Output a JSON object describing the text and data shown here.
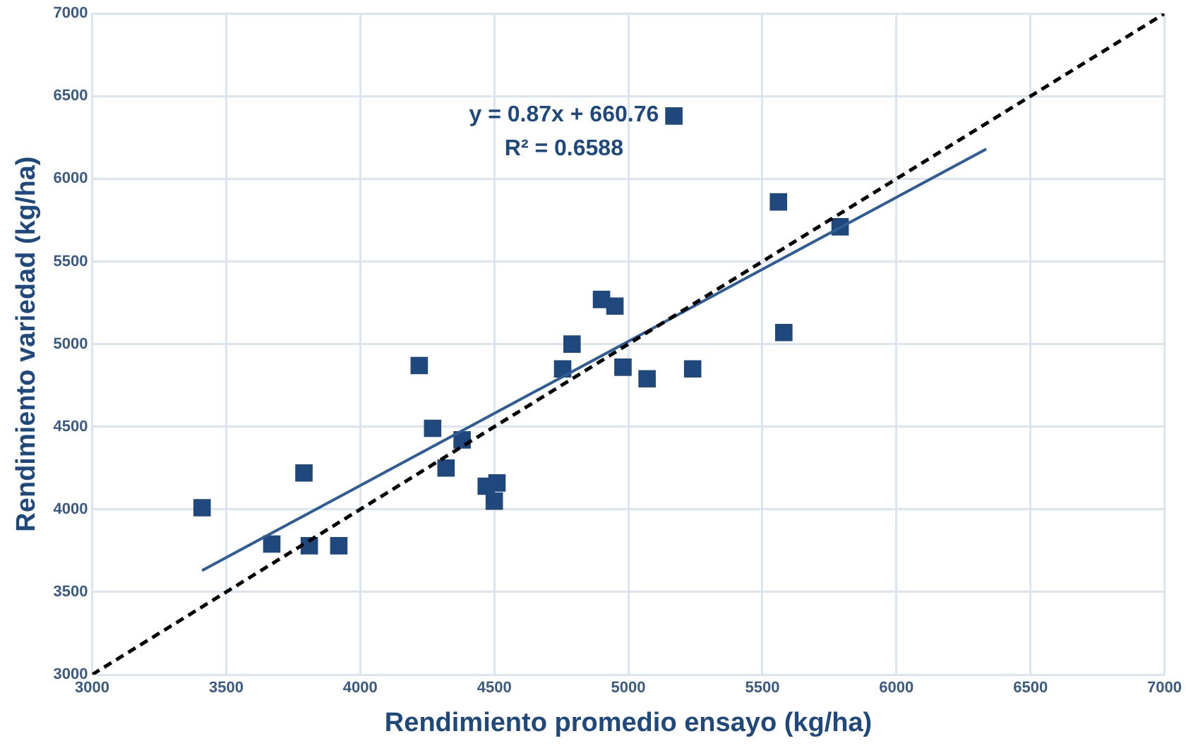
{
  "chart_data": {
    "type": "scatter",
    "xlabel": "Rendimiento promedio ensayo (kg/ha)",
    "ylabel": "Rendimiento variedad (kg/ha)",
    "xlim": [
      3000,
      7000
    ],
    "xticks": [
      3000,
      3500,
      4000,
      4500,
      5000,
      5500,
      6000,
      6500,
      7000
    ],
    "ylim": [
      3000,
      7000
    ],
    "yticks": [
      3000,
      3500,
      4000,
      4500,
      5000,
      5500,
      6000,
      6500,
      7000
    ],
    "grid": true,
    "legend": false,
    "marker": "square",
    "annotations": [
      "y = 0.87x + 660.76",
      "R² = 0.6588"
    ],
    "series": [
      {
        "type": "line",
        "color": "#000000",
        "line_style": "dashed",
        "marker": "none",
        "x": [
          3000,
          7000
        ],
        "values": [
          3000,
          7000
        ]
      },
      {
        "type": "line",
        "color": "#2e5c94",
        "line_style": "solid",
        "marker": "none",
        "x": [
          3410,
          6335
        ],
        "values": [
          3630,
          6180
        ]
      },
      {
        "color": "#1f497d",
        "x": [
          3410,
          3790,
          3670,
          3810,
          3920,
          4220,
          4270,
          4380,
          4320,
          4470,
          4510,
          4500,
          4755,
          4790,
          4900,
          4950,
          4980,
          5070,
          5240,
          5170,
          5560,
          5580,
          5790
        ],
        "values": [
          4010,
          4220,
          3790,
          3780,
          3780,
          4870,
          4490,
          4420,
          4250,
          4140,
          4160,
          4050,
          4850,
          5000,
          5270,
          5230,
          4860,
          4790,
          4850,
          6380,
          5860,
          5070,
          5710
        ]
      }
    ]
  }
}
